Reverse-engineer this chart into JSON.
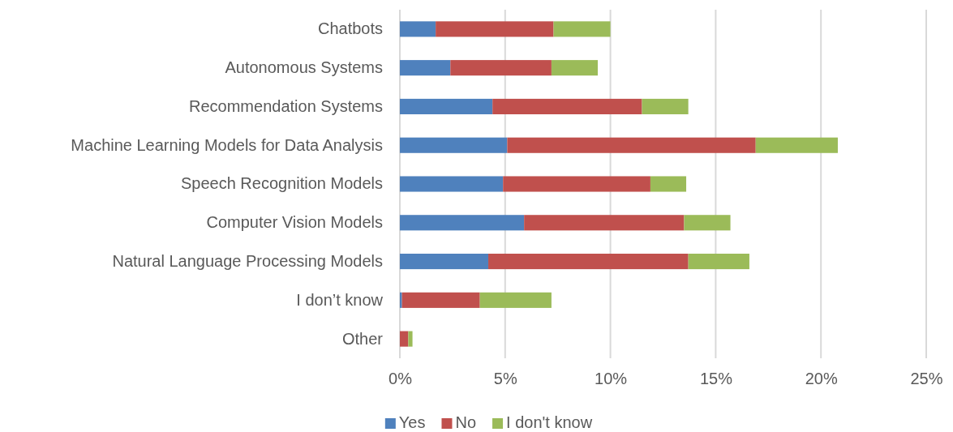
{
  "chart_data": {
    "type": "bar",
    "orientation": "horizontal",
    "stacked": true,
    "categories": [
      "Chatbots",
      "Autonomous Systems",
      "Recommendation Systems",
      "Machine Learning Models for Data Analysis",
      "Speech Recognition Models",
      "Computer Vision Models",
      "Natural Language Processing Models",
      "I don’t know",
      "Other"
    ],
    "series": [
      {
        "name": "Yes",
        "color": "#4f81bd",
        "values": [
          1.7,
          2.4,
          4.4,
          5.1,
          4.9,
          5.9,
          4.2,
          0.1,
          0
        ]
      },
      {
        "name": "No",
        "color": "#c0504d",
        "values": [
          5.6,
          4.8,
          7.1,
          11.8,
          7.0,
          7.6,
          9.5,
          3.7,
          0.4
        ]
      },
      {
        "name": "I don't know",
        "color": "#9bbb59",
        "values": [
          2.7,
          2.2,
          2.2,
          3.9,
          1.7,
          2.2,
          2.9,
          3.4,
          0.2
        ]
      }
    ],
    "xlim": [
      0,
      25
    ],
    "xticks": [
      {
        "value": 0,
        "label": "0%"
      },
      {
        "value": 5,
        "label": "5%"
      },
      {
        "value": 10,
        "label": "10%"
      },
      {
        "value": 15,
        "label": "15%"
      },
      {
        "value": 20,
        "label": "20%"
      },
      {
        "value": 25,
        "label": "25%"
      }
    ],
    "grid": "x",
    "legend": "bottom"
  }
}
